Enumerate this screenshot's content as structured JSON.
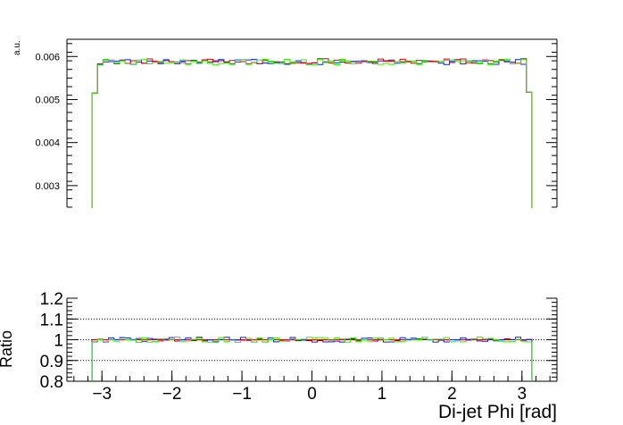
{
  "chart_data": [
    {
      "type": "line",
      "panel": "top",
      "ylabel": "a.u.",
      "xlim": [
        -3.5,
        3.5
      ],
      "ylim": [
        0.0025,
        0.0064
      ],
      "yticks": [
        0.003,
        0.004,
        0.005,
        0.006
      ],
      "ytick_labels": [
        "0.003",
        "0.004",
        "0.005",
        "0.006"
      ],
      "style": "step-histogram",
      "series": [
        {
          "color": "#0022ff",
          "edge_values": [
            0.00515,
            0.00517
          ],
          "plateau": 0.00587,
          "noise": 6e-05
        },
        {
          "color": "#dd0000",
          "edge_values": [
            0.00515,
            0.00517
          ],
          "plateau": 0.00589,
          "noise": 6e-05
        },
        {
          "color": "#33ee00",
          "edge_values": [
            0.00515,
            0.00517
          ],
          "plateau": 0.00587,
          "noise": 7e-05
        }
      ]
    },
    {
      "type": "line",
      "panel": "bottom",
      "ylabel": "Ratio",
      "xlabel": "Di-jet Phi [rad]",
      "xlim": [
        -3.5,
        3.5
      ],
      "ylim": [
        0.8,
        1.2
      ],
      "xticks": [
        -3,
        -2,
        -1,
        0,
        1,
        2,
        3
      ],
      "xtick_labels": [
        "−3",
        "−2",
        "−1",
        "0",
        "1",
        "2",
        "3"
      ],
      "yticks": [
        0.8,
        0.9,
        1.0,
        1.1,
        1.2
      ],
      "ytick_labels": [
        "0.8",
        "0.9",
        "1",
        "1.1",
        "1.2"
      ],
      "reference_lines": [
        0.9,
        1.0,
        1.1
      ],
      "series": [
        {
          "color": "#dd0000",
          "constant": 1.0
        },
        {
          "color": "#0022ff",
          "around": 1.0,
          "noise": 0.012
        },
        {
          "color": "#33ee00",
          "around": 1.0,
          "noise": 0.013
        }
      ]
    }
  ]
}
